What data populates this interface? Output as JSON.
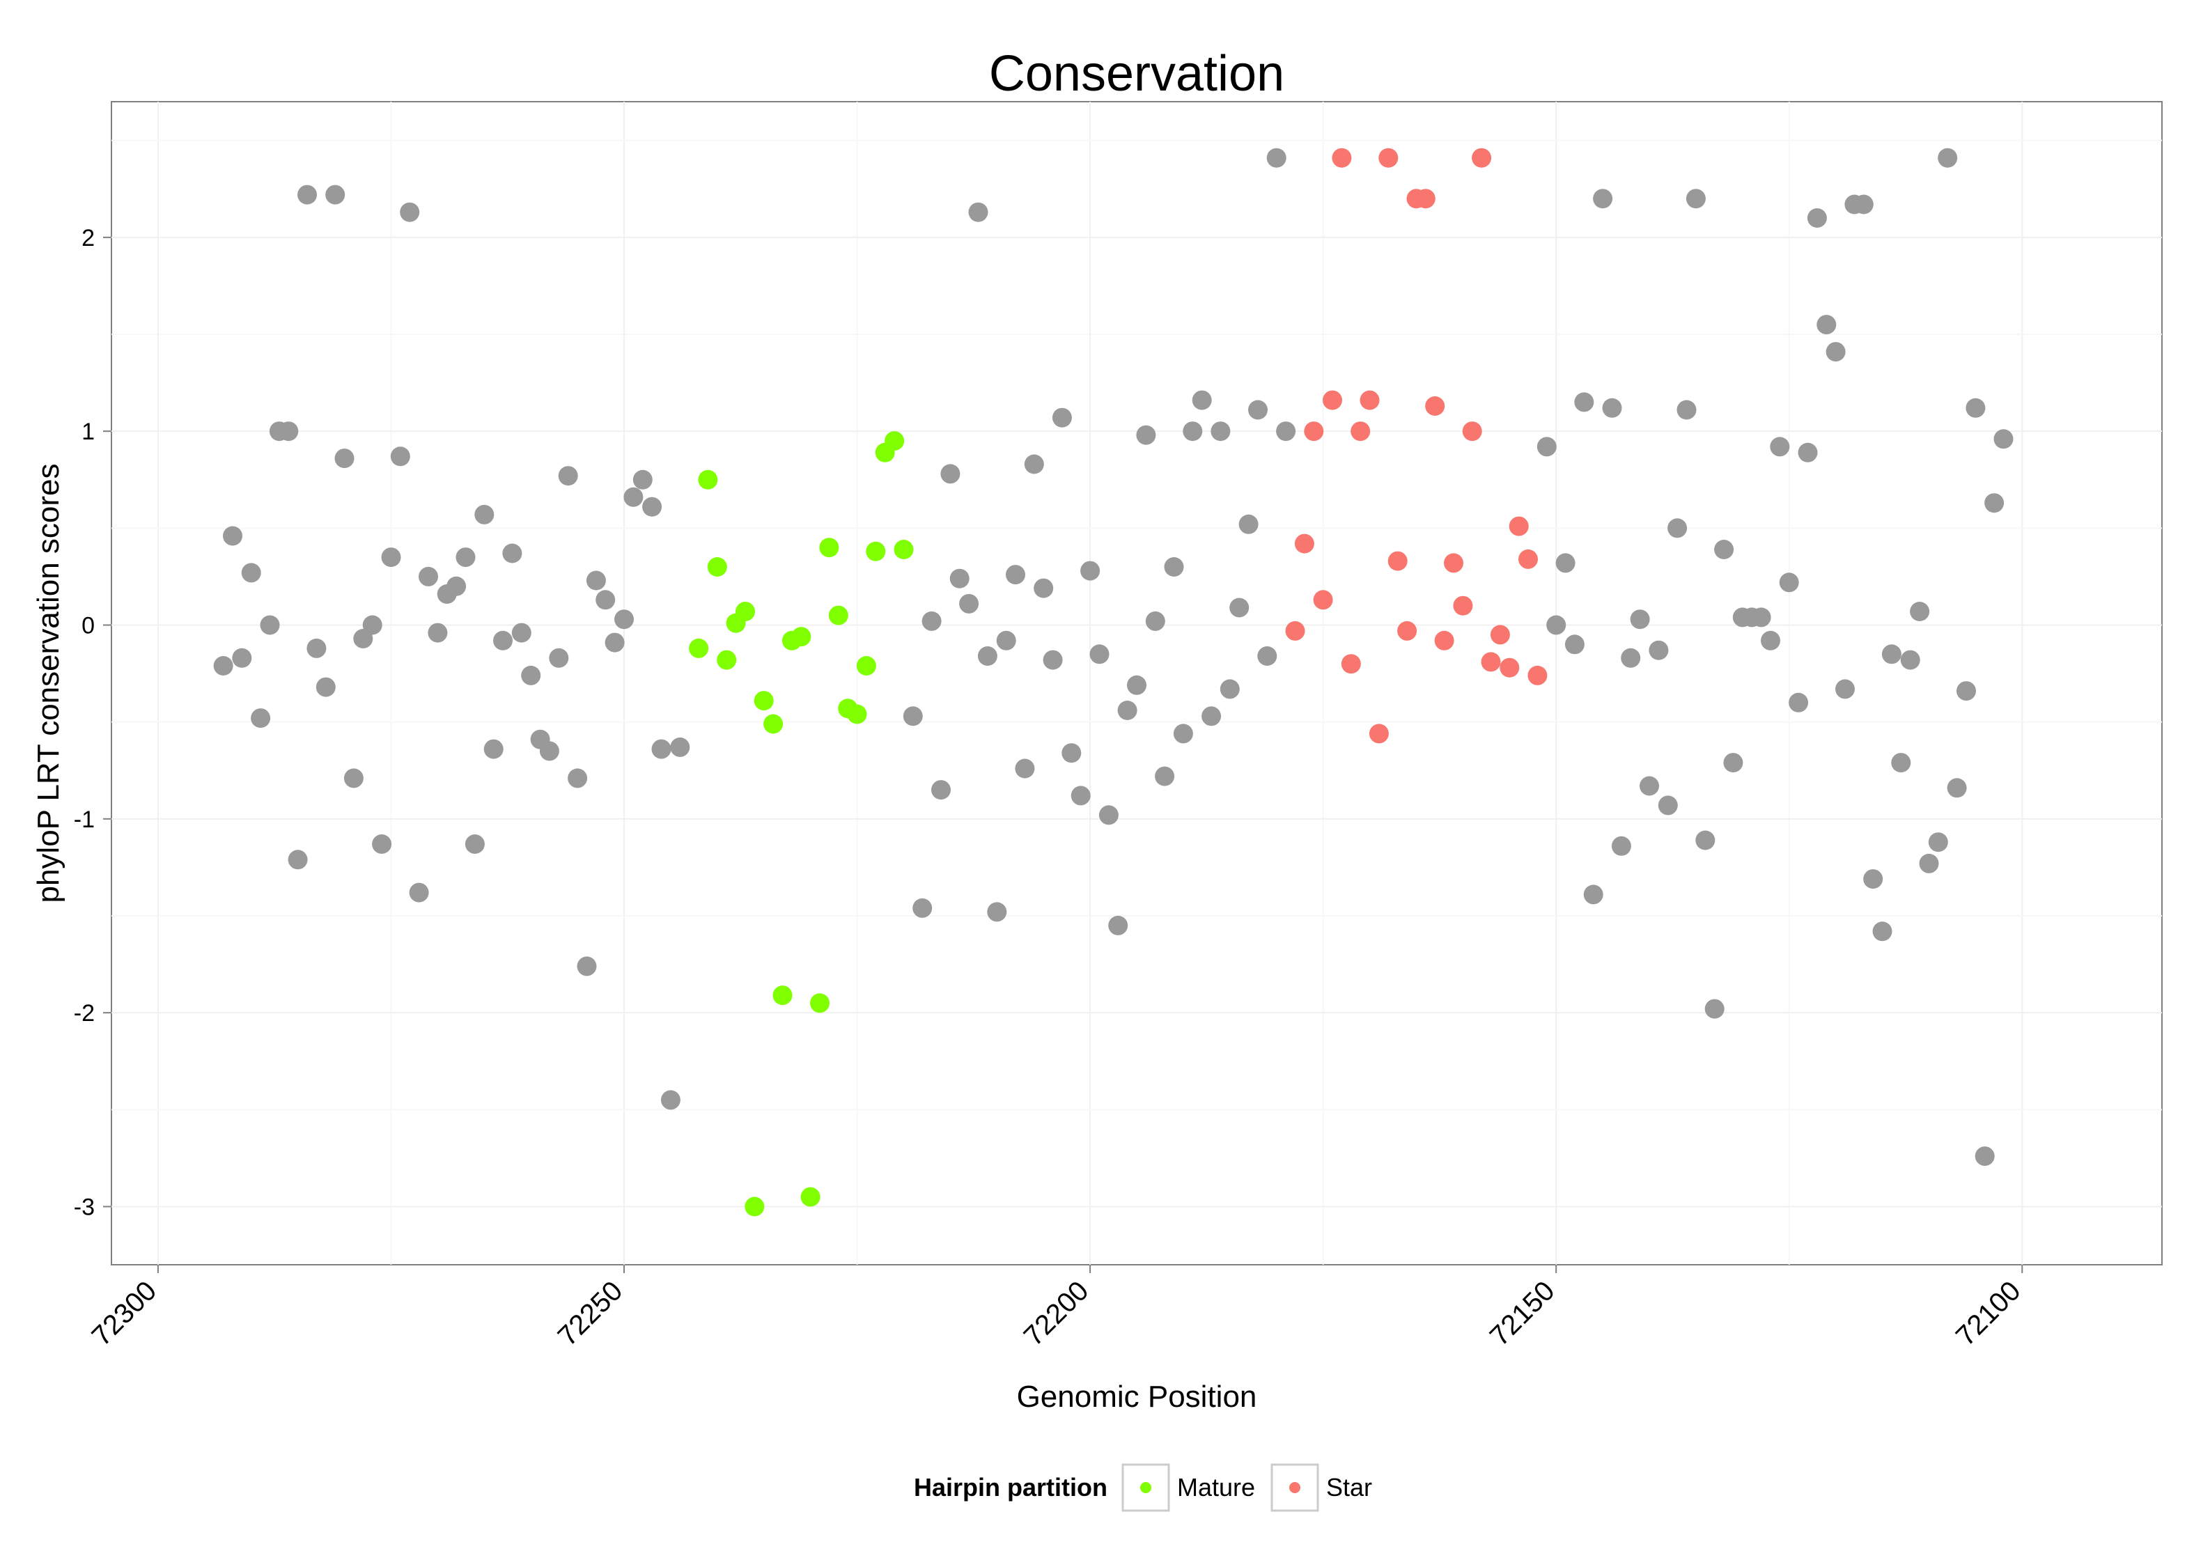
{
  "chart_data": {
    "type": "scatter",
    "title": "Conservation",
    "xlabel": "Genomic Position",
    "ylabel": "phyloP LRT conservation scores",
    "xlim": [
      72305,
      72085
    ],
    "ylim": [
      -3.3,
      2.7
    ],
    "x_reversed": true,
    "x_ticks": [
      72300,
      72250,
      72200,
      72150,
      72100
    ],
    "y_ticks": [
      -3,
      -2,
      -1,
      0,
      1,
      2
    ],
    "grid": true,
    "legend": {
      "title": "Hairpin partition",
      "placement": "bottom"
    },
    "colors": {
      "Mature": "#7fff00",
      "Star": "#f8766d",
      "other": "#999999"
    },
    "series": [
      {
        "name": "Mature",
        "color": "#7fff00",
        "points": [
          [
            72242,
            -0.12
          ],
          [
            72241,
            0.75
          ],
          [
            72240,
            0.3
          ],
          [
            72239,
            -0.18
          ],
          [
            72238,
            0.01
          ],
          [
            72237,
            0.07
          ],
          [
            72236,
            -3.0
          ],
          [
            72235,
            -0.39
          ],
          [
            72234,
            -0.51
          ],
          [
            72233,
            -1.91
          ],
          [
            72232,
            -0.08
          ],
          [
            72231,
            -0.06
          ],
          [
            72230,
            -2.95
          ],
          [
            72229,
            -1.95
          ],
          [
            72228,
            0.4
          ],
          [
            72227,
            0.05
          ],
          [
            72226,
            -0.43
          ],
          [
            72225,
            -0.46
          ],
          [
            72224,
            -0.21
          ],
          [
            72223,
            0.38
          ],
          [
            72222,
            0.89
          ],
          [
            72221,
            0.95
          ],
          [
            72220,
            0.39
          ]
        ]
      },
      {
        "name": "Star",
        "color": "#f8766d",
        "points": [
          [
            72178,
            -0.03
          ],
          [
            72177,
            0.42
          ],
          [
            72176,
            1.0
          ],
          [
            72175,
            0.13
          ],
          [
            72174,
            1.16
          ],
          [
            72173,
            2.41
          ],
          [
            72172,
            -0.2
          ],
          [
            72171,
            1.0
          ],
          [
            72170,
            1.16
          ],
          [
            72169,
            -0.56
          ],
          [
            72168,
            2.41
          ],
          [
            72167,
            0.33
          ],
          [
            72166,
            -0.03
          ],
          [
            72165,
            2.2
          ],
          [
            72164,
            2.2
          ],
          [
            72163,
            1.13
          ],
          [
            72162,
            -0.08
          ],
          [
            72161,
            0.32
          ],
          [
            72160,
            0.1
          ],
          [
            72159,
            1.0
          ],
          [
            72158,
            2.41
          ],
          [
            72157,
            -0.19
          ],
          [
            72156,
            -0.05
          ],
          [
            72155,
            -0.22
          ],
          [
            72154,
            0.51
          ],
          [
            72153,
            0.34
          ],
          [
            72152,
            -0.26
          ]
        ]
      },
      {
        "name": "",
        "color": "#999999",
        "points": [
          [
            72293,
            -0.21
          ],
          [
            72292,
            0.46
          ],
          [
            72291,
            -0.17
          ],
          [
            72290,
            0.27
          ],
          [
            72289,
            -0.48
          ],
          [
            72288,
            0.0
          ],
          [
            72287,
            1.0
          ],
          [
            72286,
            1.0
          ],
          [
            72285,
            -1.21
          ],
          [
            72284,
            2.22
          ],
          [
            72283,
            -0.12
          ],
          [
            72282,
            -0.32
          ],
          [
            72281,
            2.22
          ],
          [
            72280,
            0.86
          ],
          [
            72279,
            -0.79
          ],
          [
            72278,
            -0.07
          ],
          [
            72277,
            0.0
          ],
          [
            72276,
            -1.13
          ],
          [
            72275,
            0.35
          ],
          [
            72274,
            0.87
          ],
          [
            72273,
            2.13
          ],
          [
            72272,
            -1.38
          ],
          [
            72271,
            0.25
          ],
          [
            72270,
            -0.04
          ],
          [
            72269,
            0.16
          ],
          [
            72268,
            0.2
          ],
          [
            72267,
            0.35
          ],
          [
            72266,
            -1.13
          ],
          [
            72265,
            0.57
          ],
          [
            72264,
            -0.64
          ],
          [
            72263,
            -0.08
          ],
          [
            72262,
            0.37
          ],
          [
            72261,
            -0.04
          ],
          [
            72260,
            -0.26
          ],
          [
            72259,
            -0.59
          ],
          [
            72258,
            -0.65
          ],
          [
            72257,
            -0.17
          ],
          [
            72256,
            0.77
          ],
          [
            72255,
            -0.79
          ],
          [
            72254,
            -1.76
          ],
          [
            72253,
            0.23
          ],
          [
            72252,
            0.13
          ],
          [
            72251,
            -0.09
          ],
          [
            72250,
            0.03
          ],
          [
            72249,
            0.66
          ],
          [
            72248,
            0.75
          ],
          [
            72247,
            0.61
          ],
          [
            72246,
            -0.64
          ],
          [
            72245,
            -2.45
          ],
          [
            72244,
            -0.63
          ],
          [
            72219,
            -0.47
          ],
          [
            72218,
            -1.46
          ],
          [
            72217,
            0.02
          ],
          [
            72216,
            -0.85
          ],
          [
            72215,
            0.78
          ],
          [
            72214,
            0.24
          ],
          [
            72213,
            0.11
          ],
          [
            72212,
            2.13
          ],
          [
            72211,
            -0.16
          ],
          [
            72210,
            -1.48
          ],
          [
            72209,
            -0.08
          ],
          [
            72208,
            0.26
          ],
          [
            72207,
            -0.74
          ],
          [
            72206,
            0.83
          ],
          [
            72205,
            0.19
          ],
          [
            72204,
            -0.18
          ],
          [
            72203,
            1.07
          ],
          [
            72202,
            -0.66
          ],
          [
            72201,
            -0.88
          ],
          [
            72200,
            0.28
          ],
          [
            72199,
            -0.15
          ],
          [
            72198,
            -0.98
          ],
          [
            72197,
            -1.55
          ],
          [
            72196,
            -0.44
          ],
          [
            72195,
            -0.31
          ],
          [
            72194,
            0.98
          ],
          [
            72193,
            0.02
          ],
          [
            72192,
            -0.78
          ],
          [
            72191,
            0.3
          ],
          [
            72190,
            -0.56
          ],
          [
            72189,
            1.0
          ],
          [
            72188,
            1.16
          ],
          [
            72187,
            -0.47
          ],
          [
            72186,
            1.0
          ],
          [
            72185,
            -0.33
          ],
          [
            72184,
            0.09
          ],
          [
            72183,
            0.52
          ],
          [
            72182,
            1.11
          ],
          [
            72181,
            -0.16
          ],
          [
            72180,
            2.41
          ],
          [
            72179,
            1.0
          ],
          [
            72151,
            0.92
          ],
          [
            72150,
            0.0
          ],
          [
            72149,
            0.32
          ],
          [
            72148,
            -0.1
          ],
          [
            72147,
            1.15
          ],
          [
            72146,
            -1.39
          ],
          [
            72145,
            2.2
          ],
          [
            72144,
            1.12
          ],
          [
            72143,
            -1.14
          ],
          [
            72142,
            -0.17
          ],
          [
            72141,
            0.03
          ],
          [
            72140,
            -0.83
          ],
          [
            72139,
            -0.13
          ],
          [
            72138,
            -0.93
          ],
          [
            72137,
            0.5
          ],
          [
            72136,
            1.11
          ],
          [
            72135,
            2.2
          ],
          [
            72134,
            -1.11
          ],
          [
            72133,
            -1.98
          ],
          [
            72132,
            0.39
          ],
          [
            72131,
            -0.71
          ],
          [
            72130,
            0.04
          ],
          [
            72129,
            0.04
          ],
          [
            72128,
            0.04
          ],
          [
            72127,
            -0.08
          ],
          [
            72126,
            0.92
          ],
          [
            72125,
            0.22
          ],
          [
            72124,
            -0.4
          ],
          [
            72123,
            0.89
          ],
          [
            72122,
            2.1
          ],
          [
            72121,
            1.55
          ],
          [
            72120,
            1.41
          ],
          [
            72119,
            -0.33
          ],
          [
            72118,
            2.17
          ],
          [
            72117,
            2.17
          ],
          [
            72116,
            -1.31
          ],
          [
            72115,
            -1.58
          ],
          [
            72114,
            -0.15
          ],
          [
            72113,
            -0.71
          ],
          [
            72112,
            -0.18
          ],
          [
            72111,
            0.07
          ],
          [
            72110,
            -1.23
          ],
          [
            72109,
            -1.12
          ],
          [
            72108,
            2.41
          ],
          [
            72107,
            -0.84
          ],
          [
            72106,
            -0.34
          ],
          [
            72105,
            1.12
          ],
          [
            72104,
            -2.74
          ],
          [
            72103,
            0.63
          ],
          [
            72102,
            0.96
          ]
        ]
      }
    ]
  }
}
